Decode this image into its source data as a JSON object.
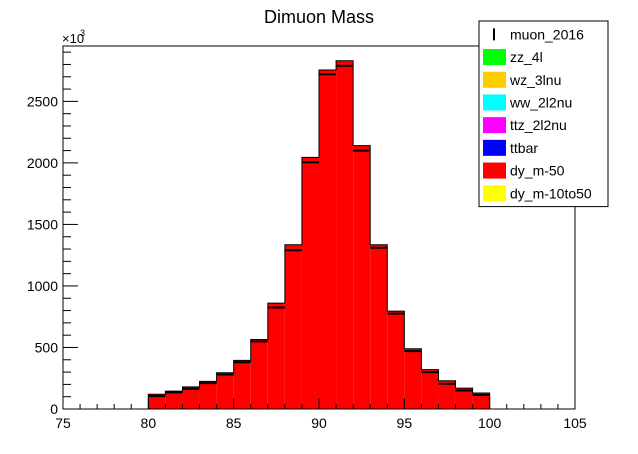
{
  "chart_data": {
    "type": "bar",
    "title": "Dimuon Mass",
    "xlabel": "",
    "ylabel": "",
    "y_multiplier_label": "×10",
    "y_multiplier_exponent": "3",
    "xlim": [
      75,
      105
    ],
    "ylim": [
      0,
      2950
    ],
    "x_ticks": [
      75,
      80,
      85,
      90,
      95,
      100,
      105
    ],
    "y_ticks": [
      0,
      500,
      1000,
      1500,
      2000,
      2500
    ],
    "grid": false,
    "legend_position": "top-right",
    "bin_edges": [
      80,
      81,
      82,
      83,
      84,
      85,
      86,
      87,
      88,
      89,
      90,
      91,
      92,
      93,
      94,
      95,
      96,
      97,
      98,
      99,
      100
    ],
    "series": [
      {
        "name": "zz_4l",
        "color": "#00ff00",
        "values": [
          0,
          0,
          0,
          0,
          0,
          0,
          0,
          0,
          0,
          0,
          0,
          0,
          0,
          0,
          0,
          0,
          0,
          0,
          0,
          0
        ]
      },
      {
        "name": "wz_3lnu",
        "color": "#ffcc00",
        "values": [
          0,
          0,
          0,
          0,
          0,
          0,
          0,
          0,
          0,
          0,
          0,
          0,
          0,
          0,
          0,
          0,
          0,
          0,
          0,
          0
        ]
      },
      {
        "name": "ww_2l2nu",
        "color": "#00ffff",
        "values": [
          0,
          0,
          0,
          0,
          0,
          0,
          0,
          0,
          0,
          0,
          0,
          0,
          0,
          0,
          0,
          0,
          0,
          0,
          0,
          0
        ]
      },
      {
        "name": "ttz_2l2nu",
        "color": "#ff00ff",
        "values": [
          0,
          0,
          0,
          0,
          0,
          0,
          0,
          0,
          0,
          0,
          0,
          0,
          0,
          0,
          0,
          0,
          0,
          0,
          0,
          0
        ]
      },
      {
        "name": "ttbar",
        "color": "#0000ff",
        "values": [
          0,
          0,
          0,
          0,
          0,
          0,
          0,
          0,
          0,
          0,
          0,
          0,
          0,
          0,
          0,
          0,
          0,
          0,
          0,
          0
        ]
      },
      {
        "name": "dy_m-50",
        "color": "#ff0000",
        "values": [
          120,
          145,
          180,
          225,
          295,
          395,
          565,
          860,
          1335,
          2045,
          2755,
          2830,
          2140,
          1335,
          795,
          490,
          320,
          230,
          170,
          130
        ]
      },
      {
        "name": "dy_m-10to50",
        "color": "#ffff00",
        "values": [
          0,
          0,
          0,
          0,
          0,
          0,
          0,
          0,
          0,
          0,
          0,
          0,
          0,
          0,
          0,
          0,
          0,
          0,
          0,
          0
        ]
      }
    ],
    "data_series": {
      "name": "muon_2016",
      "values": [
        105,
        135,
        165,
        210,
        280,
        380,
        550,
        825,
        1290,
        2005,
        2720,
        2790,
        2100,
        1310,
        775,
        470,
        300,
        205,
        150,
        115
      ]
    },
    "legend": [
      {
        "label": "muon_2016",
        "style": "marker",
        "color": "#000000"
      },
      {
        "label": "zz_4l",
        "style": "box",
        "color": "#00ff00"
      },
      {
        "label": "wz_3lnu",
        "style": "box",
        "color": "#ffcc00"
      },
      {
        "label": "ww_2l2nu",
        "style": "box",
        "color": "#00ffff"
      },
      {
        "label": "ttz_2l2nu",
        "style": "box",
        "color": "#ff00ff"
      },
      {
        "label": "ttbar",
        "style": "box",
        "color": "#0000ff"
      },
      {
        "label": "dy_m-50",
        "style": "box",
        "color": "#ff0000"
      },
      {
        "label": "dy_m-10to50",
        "style": "box",
        "color": "#ffff00"
      }
    ]
  }
}
